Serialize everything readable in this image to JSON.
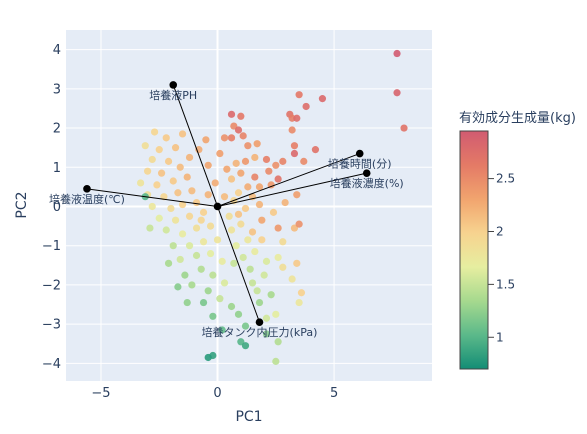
{
  "chart_data": {
    "type": "scatter",
    "title": "",
    "xlabel": "PC1",
    "ylabel": "PC2",
    "xlim": [
      -6.5,
      9.2
    ],
    "ylim": [
      -4.45,
      4.5
    ],
    "x_ticks": [
      -5,
      0,
      5
    ],
    "y_ticks": [
      -4,
      -3,
      -2,
      -1,
      0,
      1,
      2,
      3,
      4
    ],
    "grid": true,
    "colorbar": {
      "title": "有効成分生成量(kg)",
      "range": [
        0.7,
        2.95
      ],
      "ticks": [
        1,
        1.5,
        2,
        2.5
      ],
      "colorscale": [
        "#138d75",
        "#5bb98a",
        "#a6d98e",
        "#e6eea0",
        "#f7d38f",
        "#f1a46e",
        "#e47a66",
        "#d15b71"
      ]
    },
    "loadings": [
      {
        "name": "培養液PH",
        "x": -1.9,
        "y": 3.1
      },
      {
        "name": "培養時間(分)",
        "x": 6.1,
        "y": 1.35
      },
      {
        "name": "培養液濃度(%)",
        "x": 6.4,
        "y": 0.85
      },
      {
        "name": "培養液温度(℃)",
        "x": -5.6,
        "y": 0.45
      },
      {
        "name": "培養タンク内圧力(kPa)",
        "x": 1.8,
        "y": -2.95
      }
    ],
    "points": [
      {
        "x": 7.7,
        "y": 3.9,
        "v": 2.95
      },
      {
        "x": 7.7,
        "y": 2.9,
        "v": 2.85
      },
      {
        "x": 8.0,
        "y": 2.0,
        "v": 2.7
      },
      {
        "x": 4.5,
        "y": 2.75,
        "v": 2.8
      },
      {
        "x": 3.5,
        "y": 2.85,
        "v": 2.65
      },
      {
        "x": 3.8,
        "y": 2.55,
        "v": 2.75
      },
      {
        "x": 3.1,
        "y": 2.35,
        "v": 2.7
      },
      {
        "x": 3.2,
        "y": 2.25,
        "v": 2.6
      },
      {
        "x": 3.4,
        "y": 2.25,
        "v": 2.75
      },
      {
        "x": 3.2,
        "y": 1.95,
        "v": 2.5
      },
      {
        "x": 3.3,
        "y": 1.55,
        "v": 2.6
      },
      {
        "x": 3.3,
        "y": 1.35,
        "v": 2.8
      },
      {
        "x": 2.8,
        "y": 1.15,
        "v": 2.55
      },
      {
        "x": 2.5,
        "y": 1.05,
        "v": 2.45
      },
      {
        "x": 2.1,
        "y": 1.2,
        "v": 2.6
      },
      {
        "x": 2.2,
        "y": 0.9,
        "v": 2.5
      },
      {
        "x": 2.6,
        "y": 0.7,
        "v": 2.7
      },
      {
        "x": 2.3,
        "y": 0.55,
        "v": 2.4
      },
      {
        "x": 1.8,
        "y": 0.5,
        "v": 2.3
      },
      {
        "x": 1.6,
        "y": 0.75,
        "v": 2.55
      },
      {
        "x": 3.4,
        "y": 0.3,
        "v": 2.35
      },
      {
        "x": 2.9,
        "y": 0.1,
        "v": 2.2
      },
      {
        "x": 2.4,
        "y": -0.15,
        "v": 2.05
      },
      {
        "x": 1.9,
        "y": -0.35,
        "v": 2.3
      },
      {
        "x": 2.6,
        "y": -0.55,
        "v": 2.4
      },
      {
        "x": 3.3,
        "y": -0.55,
        "v": 2.15
      },
      {
        "x": 1.5,
        "y": -0.65,
        "v": 2.1
      },
      {
        "x": 1.9,
        "y": -0.85,
        "v": 2.0
      },
      {
        "x": 2.8,
        "y": -0.9,
        "v": 1.9
      },
      {
        "x": 3.5,
        "y": -0.45,
        "v": 2.45
      },
      {
        "x": 0.6,
        "y": 2.35,
        "v": 2.8
      },
      {
        "x": 0.7,
        "y": 2.05,
        "v": 2.5
      },
      {
        "x": 0.6,
        "y": 1.75,
        "v": 2.6
      },
      {
        "x": 0.9,
        "y": 1.95,
        "v": 2.75
      },
      {
        "x": 1.1,
        "y": 1.8,
        "v": 2.55
      },
      {
        "x": 1.0,
        "y": 2.3,
        "v": 2.65
      },
      {
        "x": 1.3,
        "y": 1.55,
        "v": 2.45
      },
      {
        "x": 1.7,
        "y": 1.6,
        "v": 2.35
      },
      {
        "x": 1.6,
        "y": 1.25,
        "v": 2.2
      },
      {
        "x": 1.2,
        "y": 1.15,
        "v": 2.4
      },
      {
        "x": 0.8,
        "y": 1.1,
        "v": 2.2
      },
      {
        "x": 1.0,
        "y": 0.85,
        "v": 2.3
      },
      {
        "x": 0.6,
        "y": 0.7,
        "v": 2.1
      },
      {
        "x": 1.3,
        "y": 0.5,
        "v": 2.25
      },
      {
        "x": 0.9,
        "y": 0.35,
        "v": 2.0
      },
      {
        "x": 1.5,
        "y": 0.25,
        "v": 2.15
      },
      {
        "x": 0.7,
        "y": 0.15,
        "v": 1.95
      },
      {
        "x": 1.2,
        "y": -0.05,
        "v": 2.05
      },
      {
        "x": 0.5,
        "y": -0.25,
        "v": 1.85
      },
      {
        "x": 1.0,
        "y": -0.45,
        "v": 1.9
      },
      {
        "x": 0.6,
        "y": -0.6,
        "v": 1.8
      },
      {
        "x": 1.3,
        "y": -0.85,
        "v": 1.75
      },
      {
        "x": 0.8,
        "y": -1.0,
        "v": 1.65
      },
      {
        "x": 1.6,
        "y": -1.15,
        "v": 1.7
      },
      {
        "x": 1.1,
        "y": -1.3,
        "v": 1.55
      },
      {
        "x": 0.7,
        "y": -1.45,
        "v": 1.5
      },
      {
        "x": 1.4,
        "y": -1.6,
        "v": 1.45
      },
      {
        "x": 2.1,
        "y": -1.4,
        "v": 1.6
      },
      {
        "x": 2.0,
        "y": -1.75,
        "v": 1.55
      },
      {
        "x": 1.5,
        "y": -1.95,
        "v": 1.5
      },
      {
        "x": 2.6,
        "y": -1.3,
        "v": 1.7
      },
      {
        "x": 2.8,
        "y": -1.55,
        "v": 1.85
      },
      {
        "x": 3.4,
        "y": -1.45,
        "v": 2.05
      },
      {
        "x": 3.2,
        "y": -1.85,
        "v": 1.8
      },
      {
        "x": 2.3,
        "y": -2.25,
        "v": 1.35
      },
      {
        "x": 1.8,
        "y": -2.45,
        "v": 1.3
      },
      {
        "x": 3.6,
        "y": -2.2,
        "v": 2.0
      },
      {
        "x": 3.5,
        "y": -2.45,
        "v": 1.75
      },
      {
        "x": 2.1,
        "y": -2.85,
        "v": 1.55
      },
      {
        "x": 2.5,
        "y": -2.75,
        "v": 1.65
      },
      {
        "x": 0.9,
        "y": -2.75,
        "v": 1.25
      },
      {
        "x": 1.2,
        "y": -3.05,
        "v": 1.15
      },
      {
        "x": 0.2,
        "y": -3.15,
        "v": 1.05
      },
      {
        "x": 1.0,
        "y": -3.45,
        "v": 1.0
      },
      {
        "x": 1.2,
        "y": -3.55,
        "v": 0.9
      },
      {
        "x": 2.1,
        "y": -3.25,
        "v": 1.2
      },
      {
        "x": 2.6,
        "y": -3.45,
        "v": 1.4
      },
      {
        "x": 2.5,
        "y": -3.95,
        "v": 1.45
      },
      {
        "x": -0.2,
        "y": -3.8,
        "v": 0.85
      },
      {
        "x": -0.4,
        "y": -3.85,
        "v": 0.8
      },
      {
        "x": -0.6,
        "y": -2.45,
        "v": 1.15
      },
      {
        "x": -1.3,
        "y": -2.45,
        "v": 1.25
      },
      {
        "x": -1.1,
        "y": -2.0,
        "v": 1.35
      },
      {
        "x": -0.4,
        "y": -2.15,
        "v": 1.3
      },
      {
        "x": 0.1,
        "y": -2.35,
        "v": 1.5
      },
      {
        "x": 0.3,
        "y": -1.95,
        "v": 1.6
      },
      {
        "x": -0.2,
        "y": -1.75,
        "v": 1.45
      },
      {
        "x": -0.7,
        "y": -1.6,
        "v": 1.4
      },
      {
        "x": -1.4,
        "y": -1.75,
        "v": 1.3
      },
      {
        "x": -1.6,
        "y": -1.35,
        "v": 1.55
      },
      {
        "x": -0.9,
        "y": -1.25,
        "v": 1.5
      },
      {
        "x": -0.3,
        "y": -1.2,
        "v": 1.65
      },
      {
        "x": 0.2,
        "y": -1.4,
        "v": 1.7
      },
      {
        "x": -1.2,
        "y": -1.0,
        "v": 1.6
      },
      {
        "x": -1.9,
        "y": -1.0,
        "v": 1.45
      },
      {
        "x": -0.6,
        "y": -0.9,
        "v": 1.75
      },
      {
        "x": 0.0,
        "y": -0.85,
        "v": 1.8
      },
      {
        "x": -1.5,
        "y": -0.7,
        "v": 1.7
      },
      {
        "x": -2.2,
        "y": -0.6,
        "v": 1.55
      },
      {
        "x": -0.9,
        "y": -0.55,
        "v": 1.85
      },
      {
        "x": -0.3,
        "y": -0.5,
        "v": 1.9
      },
      {
        "x": -1.8,
        "y": -0.35,
        "v": 1.8
      },
      {
        "x": -2.5,
        "y": -0.3,
        "v": 1.65
      },
      {
        "x": -1.2,
        "y": -0.25,
        "v": 1.95
      },
      {
        "x": -0.6,
        "y": -0.15,
        "v": 2.0
      },
      {
        "x": -2.0,
        "y": -0.05,
        "v": 1.9
      },
      {
        "x": -2.8,
        "y": 0.0,
        "v": 1.75
      },
      {
        "x": -1.5,
        "y": 0.05,
        "v": 2.0
      },
      {
        "x": -0.9,
        "y": 0.1,
        "v": 2.05
      },
      {
        "x": -2.3,
        "y": 0.25,
        "v": 1.95
      },
      {
        "x": -3.0,
        "y": 0.3,
        "v": 1.85
      },
      {
        "x": -1.7,
        "y": 0.35,
        "v": 2.1
      },
      {
        "x": -1.1,
        "y": 0.4,
        "v": 2.15
      },
      {
        "x": -2.6,
        "y": 0.55,
        "v": 2.0
      },
      {
        "x": -3.3,
        "y": 0.6,
        "v": 1.8
      },
      {
        "x": -1.9,
        "y": 0.65,
        "v": 2.05
      },
      {
        "x": -1.3,
        "y": 0.75,
        "v": 2.2
      },
      {
        "x": -2.4,
        "y": 0.85,
        "v": 2.1
      },
      {
        "x": -3.0,
        "y": 0.9,
        "v": 1.95
      },
      {
        "x": -1.6,
        "y": 1.0,
        "v": 2.15
      },
      {
        "x": -2.1,
        "y": 1.15,
        "v": 2.05
      },
      {
        "x": -2.8,
        "y": 1.2,
        "v": 1.9
      },
      {
        "x": -1.2,
        "y": 1.25,
        "v": 2.2
      },
      {
        "x": -2.5,
        "y": 1.45,
        "v": 2.0
      },
      {
        "x": -1.8,
        "y": 1.5,
        "v": 2.1
      },
      {
        "x": -3.1,
        "y": 1.55,
        "v": 1.85
      },
      {
        "x": -2.2,
        "y": 1.75,
        "v": 2.05
      },
      {
        "x": -2.7,
        "y": 1.9,
        "v": 1.95
      },
      {
        "x": -1.5,
        "y": 1.85,
        "v": 2.1
      },
      {
        "x": -0.8,
        "y": 1.45,
        "v": 2.25
      },
      {
        "x": -0.4,
        "y": 1.05,
        "v": 2.3
      },
      {
        "x": -0.1,
        "y": 0.6,
        "v": 2.25
      },
      {
        "x": 0.3,
        "y": 0.25,
        "v": 2.15
      },
      {
        "x": -0.4,
        "y": 0.3,
        "v": 2.2
      },
      {
        "x": 0.1,
        "y": 1.35,
        "v": 2.35
      },
      {
        "x": -0.5,
        "y": 1.7,
        "v": 2.3
      },
      {
        "x": 0.3,
        "y": 1.75,
        "v": 2.45
      },
      {
        "x": -3.1,
        "y": 0.25,
        "v": 1.0
      },
      {
        "x": -2.9,
        "y": -0.55,
        "v": 1.5
      },
      {
        "x": -2.1,
        "y": -1.45,
        "v": 1.35
      },
      {
        "x": -1.7,
        "y": -2.05,
        "v": 1.2
      },
      {
        "x": 0.6,
        "y": -2.55,
        "v": 1.3
      },
      {
        "x": -0.2,
        "y": -2.8,
        "v": 1.15
      },
      {
        "x": 1.7,
        "y": -2.15,
        "v": 1.5
      },
      {
        "x": 3.7,
        "y": 1.15,
        "v": 2.5
      },
      {
        "x": 4.2,
        "y": 1.45,
        "v": 2.7
      },
      {
        "x": 0.4,
        "y": 0.95,
        "v": 2.3
      },
      {
        "x": -0.7,
        "y": -0.35,
        "v": 1.95
      },
      {
        "x": 0.9,
        "y": -0.2,
        "v": 2.1
      },
      {
        "x": 1.8,
        "y": 0.05,
        "v": 2.2
      }
    ]
  }
}
